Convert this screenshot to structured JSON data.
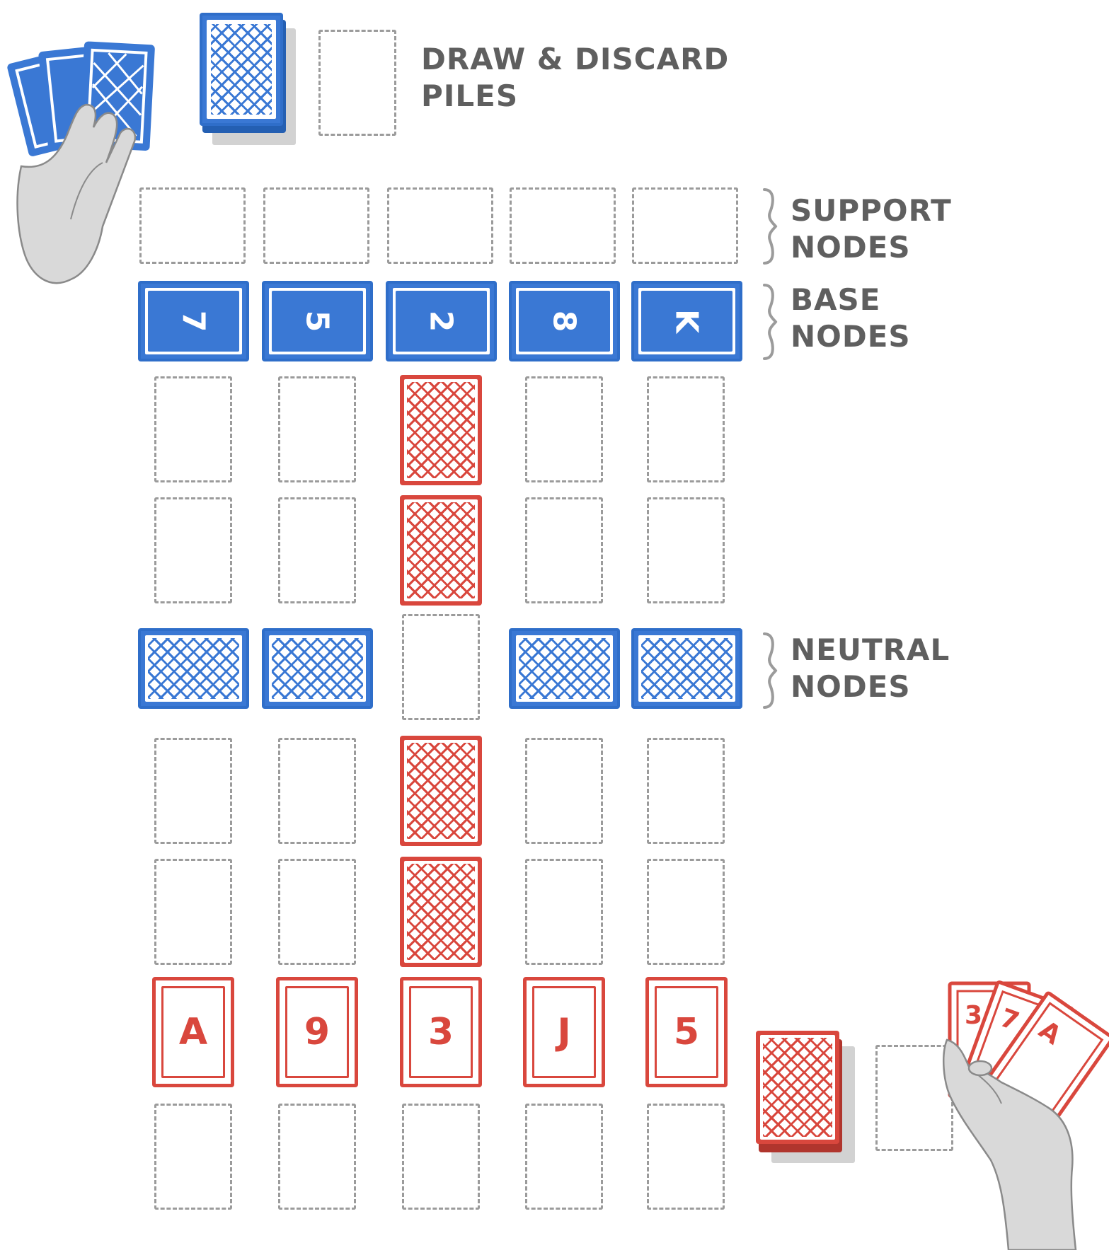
{
  "labels": {
    "draw_discard": {
      "line1": "DRAW & DISCARD",
      "line2": "PILES"
    },
    "support": {
      "line1": "SUPPORT",
      "line2": "NODES"
    },
    "base": {
      "line1": "BASE",
      "line2": "NODES"
    },
    "neutral": {
      "line1": "NEUTRAL",
      "line2": "NODES"
    }
  },
  "blue_base_cards": [
    "7",
    "5",
    "2",
    "8",
    "K"
  ],
  "red_base_cards": [
    "A",
    "9",
    "3",
    "J",
    "5"
  ],
  "red_hand": [
    "3",
    "7",
    "A"
  ],
  "colors": {
    "blue": "#3a78d4",
    "red": "#d9473d",
    "slot": "#9b9b9b",
    "label": "#5f5f5f",
    "hand": "#d9d9d9"
  }
}
